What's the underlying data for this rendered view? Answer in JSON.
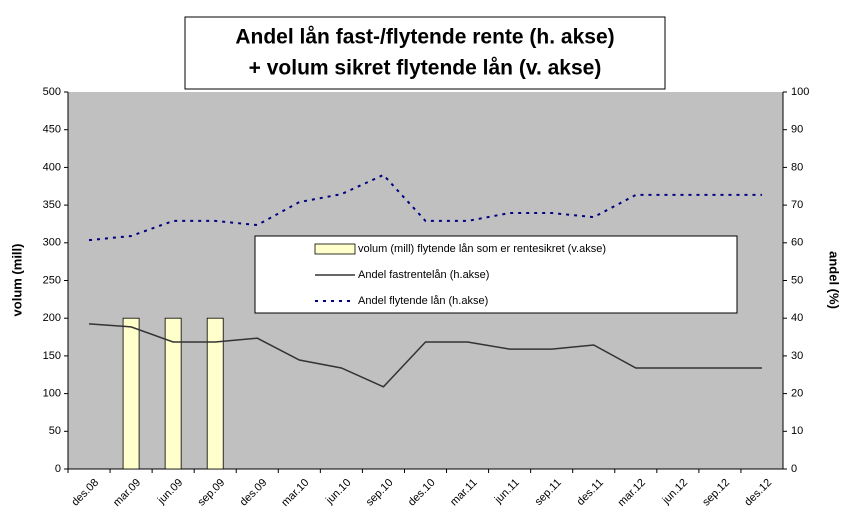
{
  "chart_data": {
    "type": "bar",
    "title": [
      "Andel lån fast-/flytende rente (h. akse)",
      "+ volum sikret flytende lån (v. akse)"
    ],
    "y_label": "volum (mill)",
    "y2_label": "andel (%)",
    "categories": [
      "des.08",
      "mar.09",
      "jun.09",
      "sep.09",
      "des.09",
      "mar.10",
      "jun.10",
      "sep.10",
      "des.10",
      "mar.11",
      "jun.11",
      "sep.11",
      "des.11",
      "mar.12",
      "jun.12",
      "sep.12",
      "des.12"
    ],
    "ylim": [
      0,
      500
    ],
    "yticks": [
      0,
      50,
      100,
      150,
      200,
      250,
      300,
      350,
      400,
      450,
      500
    ],
    "y2lim": [
      0,
      100
    ],
    "y2ticks": [
      0,
      10,
      20,
      30,
      40,
      50,
      60,
      70,
      80,
      90,
      100
    ],
    "plot_background": "#c0c0c0",
    "series": [
      {
        "name": "volum (mill) flytende lån som er rentesikret (v.akse)",
        "type": "bar",
        "color": "#ffffcc",
        "values": [
          null,
          200,
          200,
          200,
          null,
          null,
          null,
          null,
          null,
          null,
          null,
          null,
          null,
          null,
          null,
          null,
          null
        ]
      },
      {
        "name": "Andel fastrentelån (h.akse)",
        "type": "line",
        "color": "#333333",
        "dashed": false,
        "axis": "y2",
        "values": [
          38.5,
          37.7,
          33.7,
          33.7,
          34.7,
          28.9,
          26.8,
          21.8,
          33.7,
          33.7,
          31.8,
          31.8,
          32.9,
          26.8,
          26.8,
          26.8,
          26.8
        ]
      },
      {
        "name": "Andel flytende lån (h.akse)",
        "type": "line",
        "color": "#000080",
        "dashed": true,
        "axis": "y2",
        "values": [
          60.7,
          61.8,
          65.8,
          65.8,
          64.7,
          70.8,
          72.9,
          78.0,
          65.8,
          65.8,
          67.9,
          67.9,
          66.8,
          72.7,
          72.7,
          72.7,
          72.7
        ]
      }
    ]
  }
}
